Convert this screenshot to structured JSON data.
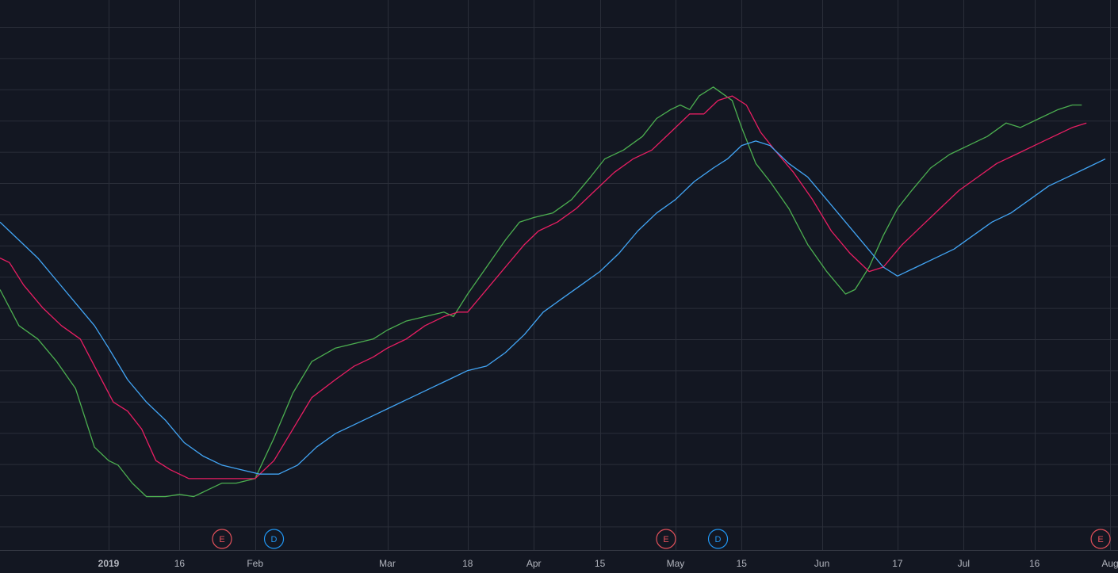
{
  "colors": {
    "background": "#131722",
    "grid": "#2a2e39",
    "axis_text": "#b2b5be",
    "earnings": "#e4515b",
    "dividend": "#2196f3"
  },
  "chart_data": {
    "type": "line",
    "title": "",
    "xlabel": "",
    "ylabel": "",
    "grid": true,
    "legend": "none",
    "x_ticks": [
      {
        "label": "2019",
        "date": "2019-01-01",
        "bold": true
      },
      {
        "label": "16",
        "date": "2019-01-16"
      },
      {
        "label": "Feb",
        "date": "2019-02-01"
      },
      {
        "label": "Mar",
        "date": "2019-03-01"
      },
      {
        "label": "18",
        "date": "2019-03-18"
      },
      {
        "label": "Apr",
        "date": "2019-04-01"
      },
      {
        "label": "15",
        "date": "2019-04-15"
      },
      {
        "label": "May",
        "date": "2019-05-01"
      },
      {
        "label": "15",
        "date": "2019-05-15"
      },
      {
        "label": "Jun",
        "date": "2019-06-01"
      },
      {
        "label": "17",
        "date": "2019-06-17"
      },
      {
        "label": "Jul",
        "date": "2019-07-01"
      },
      {
        "label": "16",
        "date": "2019-07-16"
      },
      {
        "label": "Aug",
        "date": "2019-08-01"
      }
    ],
    "x_range": [
      "2018-12-09",
      "2019-08-01"
    ],
    "y_range": [
      0,
      100
    ],
    "series": [
      {
        "color": "#4caf50",
        "points": [
          [
            "2018-12-09",
            48
          ],
          [
            "2018-12-13",
            40
          ],
          [
            "2018-12-17",
            37
          ],
          [
            "2018-12-21",
            32
          ],
          [
            "2018-12-25",
            26
          ],
          [
            "2018-12-29",
            13
          ],
          [
            "2019-01-01",
            10
          ],
          [
            "2019-01-03",
            9
          ],
          [
            "2019-01-06",
            5
          ],
          [
            "2019-01-09",
            2
          ],
          [
            "2019-01-13",
            2
          ],
          [
            "2019-01-16",
            2.5
          ],
          [
            "2019-01-19",
            2
          ],
          [
            "2019-01-22",
            3.5
          ],
          [
            "2019-01-25",
            5
          ],
          [
            "2019-01-28",
            5
          ],
          [
            "2019-02-01",
            6
          ],
          [
            "2019-02-05",
            15
          ],
          [
            "2019-02-09",
            25
          ],
          [
            "2019-02-13",
            32
          ],
          [
            "2019-02-18",
            35
          ],
          [
            "2019-02-22",
            36
          ],
          [
            "2019-02-26",
            37
          ],
          [
            "2019-03-01",
            39
          ],
          [
            "2019-03-05",
            41
          ],
          [
            "2019-03-09",
            42
          ],
          [
            "2019-03-13",
            43
          ],
          [
            "2019-03-15",
            42
          ],
          [
            "2019-03-18",
            47
          ],
          [
            "2019-03-22",
            53
          ],
          [
            "2019-03-26",
            59
          ],
          [
            "2019-03-29",
            63
          ],
          [
            "2019-04-01",
            64
          ],
          [
            "2019-04-05",
            65
          ],
          [
            "2019-04-09",
            68
          ],
          [
            "2019-04-13",
            73
          ],
          [
            "2019-04-16",
            77
          ],
          [
            "2019-04-20",
            79
          ],
          [
            "2019-04-24",
            82
          ],
          [
            "2019-04-27",
            86
          ],
          [
            "2019-04-30",
            88
          ],
          [
            "2019-05-02",
            89
          ],
          [
            "2019-05-04",
            88
          ],
          [
            "2019-05-06",
            91
          ],
          [
            "2019-05-09",
            93
          ],
          [
            "2019-05-13",
            90
          ],
          [
            "2019-05-15",
            84
          ],
          [
            "2019-05-18",
            76
          ],
          [
            "2019-05-21",
            72
          ],
          [
            "2019-05-25",
            66
          ],
          [
            "2019-05-29",
            58
          ],
          [
            "2019-06-02",
            52
          ],
          [
            "2019-06-06",
            47
          ],
          [
            "2019-06-08",
            48
          ],
          [
            "2019-06-11",
            53
          ],
          [
            "2019-06-14",
            60
          ],
          [
            "2019-06-17",
            66
          ],
          [
            "2019-06-20",
            70
          ],
          [
            "2019-06-24",
            75
          ],
          [
            "2019-06-28",
            78
          ],
          [
            "2019-07-02",
            80
          ],
          [
            "2019-07-06",
            82
          ],
          [
            "2019-07-10",
            85
          ],
          [
            "2019-07-13",
            84
          ],
          [
            "2019-07-17",
            86
          ],
          [
            "2019-07-21",
            88
          ],
          [
            "2019-07-24",
            89
          ],
          [
            "2019-07-26",
            89
          ]
        ]
      },
      {
        "color": "#e91e63",
        "points": [
          [
            "2018-12-09",
            55
          ],
          [
            "2018-12-11",
            54
          ],
          [
            "2018-12-14",
            49
          ],
          [
            "2018-12-18",
            44
          ],
          [
            "2018-12-22",
            40
          ],
          [
            "2018-12-26",
            37
          ],
          [
            "2018-12-30",
            29
          ],
          [
            "2019-01-02",
            23
          ],
          [
            "2019-01-05",
            21
          ],
          [
            "2019-01-08",
            17
          ],
          [
            "2019-01-11",
            10
          ],
          [
            "2019-01-14",
            8
          ],
          [
            "2019-01-18",
            6
          ],
          [
            "2019-01-21",
            6
          ],
          [
            "2019-01-24",
            6
          ],
          [
            "2019-01-28",
            6
          ],
          [
            "2019-02-01",
            6
          ],
          [
            "2019-02-05",
            10
          ],
          [
            "2019-02-09",
            17
          ],
          [
            "2019-02-13",
            24
          ],
          [
            "2019-02-18",
            28
          ],
          [
            "2019-02-22",
            31
          ],
          [
            "2019-02-26",
            33
          ],
          [
            "2019-03-01",
            35
          ],
          [
            "2019-03-05",
            37
          ],
          [
            "2019-03-09",
            40
          ],
          [
            "2019-03-13",
            42
          ],
          [
            "2019-03-16",
            43
          ],
          [
            "2019-03-18",
            43
          ],
          [
            "2019-03-22",
            48
          ],
          [
            "2019-03-26",
            53
          ],
          [
            "2019-03-30",
            58
          ],
          [
            "2019-04-02",
            61
          ],
          [
            "2019-04-06",
            63
          ],
          [
            "2019-04-10",
            66
          ],
          [
            "2019-04-14",
            70
          ],
          [
            "2019-04-18",
            74
          ],
          [
            "2019-04-22",
            77
          ],
          [
            "2019-04-26",
            79
          ],
          [
            "2019-04-30",
            83
          ],
          [
            "2019-05-04",
            87
          ],
          [
            "2019-05-07",
            87
          ],
          [
            "2019-05-10",
            90
          ],
          [
            "2019-05-13",
            91
          ],
          [
            "2019-05-16",
            89
          ],
          [
            "2019-05-19",
            83
          ],
          [
            "2019-05-22",
            79
          ],
          [
            "2019-05-26",
            74
          ],
          [
            "2019-05-30",
            68
          ],
          [
            "2019-06-03",
            61
          ],
          [
            "2019-06-07",
            56
          ],
          [
            "2019-06-11",
            52
          ],
          [
            "2019-06-14",
            53
          ],
          [
            "2019-06-18",
            58
          ],
          [
            "2019-06-22",
            62
          ],
          [
            "2019-06-26",
            66
          ],
          [
            "2019-06-30",
            70
          ],
          [
            "2019-07-04",
            73
          ],
          [
            "2019-07-08",
            76
          ],
          [
            "2019-07-12",
            78
          ],
          [
            "2019-07-16",
            80
          ],
          [
            "2019-07-20",
            82
          ],
          [
            "2019-07-24",
            84
          ],
          [
            "2019-07-27",
            85
          ]
        ]
      },
      {
        "color": "#42a5f5",
        "points": [
          [
            "2018-12-09",
            63
          ],
          [
            "2018-12-13",
            59
          ],
          [
            "2018-12-17",
            55
          ],
          [
            "2018-12-21",
            50
          ],
          [
            "2018-12-25",
            45
          ],
          [
            "2018-12-29",
            40
          ],
          [
            "2019-01-01",
            35
          ],
          [
            "2019-01-05",
            28
          ],
          [
            "2019-01-09",
            23
          ],
          [
            "2019-01-13",
            19
          ],
          [
            "2019-01-17",
            14
          ],
          [
            "2019-01-21",
            11
          ],
          [
            "2019-01-25",
            9
          ],
          [
            "2019-01-29",
            8
          ],
          [
            "2019-02-02",
            7
          ],
          [
            "2019-02-06",
            7
          ],
          [
            "2019-02-10",
            9
          ],
          [
            "2019-02-14",
            13
          ],
          [
            "2019-02-18",
            16
          ],
          [
            "2019-02-22",
            18
          ],
          [
            "2019-02-26",
            20
          ],
          [
            "2019-03-02",
            22
          ],
          [
            "2019-03-06",
            24
          ],
          [
            "2019-03-10",
            26
          ],
          [
            "2019-03-14",
            28
          ],
          [
            "2019-03-18",
            30
          ],
          [
            "2019-03-22",
            31
          ],
          [
            "2019-03-26",
            34
          ],
          [
            "2019-03-30",
            38
          ],
          [
            "2019-04-03",
            43
          ],
          [
            "2019-04-07",
            46
          ],
          [
            "2019-04-11",
            49
          ],
          [
            "2019-04-15",
            52
          ],
          [
            "2019-04-19",
            56
          ],
          [
            "2019-04-23",
            61
          ],
          [
            "2019-04-27",
            65
          ],
          [
            "2019-05-01",
            68
          ],
          [
            "2019-05-05",
            72
          ],
          [
            "2019-05-09",
            75
          ],
          [
            "2019-05-12",
            77
          ],
          [
            "2019-05-15",
            80
          ],
          [
            "2019-05-18",
            81
          ],
          [
            "2019-05-21",
            80
          ],
          [
            "2019-05-25",
            76
          ],
          [
            "2019-05-29",
            73
          ],
          [
            "2019-06-02",
            68
          ],
          [
            "2019-06-06",
            63
          ],
          [
            "2019-06-10",
            58
          ],
          [
            "2019-06-14",
            53
          ],
          [
            "2019-06-17",
            51
          ],
          [
            "2019-06-21",
            53
          ],
          [
            "2019-06-25",
            55
          ],
          [
            "2019-06-29",
            57
          ],
          [
            "2019-07-03",
            60
          ],
          [
            "2019-07-07",
            63
          ],
          [
            "2019-07-11",
            65
          ],
          [
            "2019-07-15",
            68
          ],
          [
            "2019-07-19",
            71
          ],
          [
            "2019-07-23",
            73
          ],
          [
            "2019-07-27",
            75
          ],
          [
            "2019-07-31",
            77
          ]
        ]
      }
    ],
    "events": [
      {
        "letter": "E",
        "kind": "earnings",
        "date": "2019-01-25"
      },
      {
        "letter": "D",
        "kind": "dividend",
        "date": "2019-02-05"
      },
      {
        "letter": "E",
        "kind": "earnings",
        "date": "2019-04-29"
      },
      {
        "letter": "D",
        "kind": "dividend",
        "date": "2019-05-10"
      },
      {
        "letter": "E",
        "kind": "earnings",
        "date": "2019-07-30"
      }
    ]
  }
}
